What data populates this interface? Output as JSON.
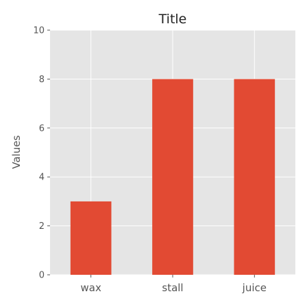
{
  "chart_data": {
    "type": "bar",
    "title": "Title",
    "xlabel": "",
    "ylabel": "Values",
    "categories": [
      "wax",
      "stall",
      "juice"
    ],
    "values": [
      3,
      8,
      8
    ],
    "ylim": [
      0,
      10
    ],
    "yticks": [
      0,
      2,
      4,
      6,
      8,
      10
    ],
    "grid": true,
    "colors": {
      "bar": "#e24a33",
      "plot_background": "#e5e5e5",
      "grid": "#ffffff"
    }
  }
}
